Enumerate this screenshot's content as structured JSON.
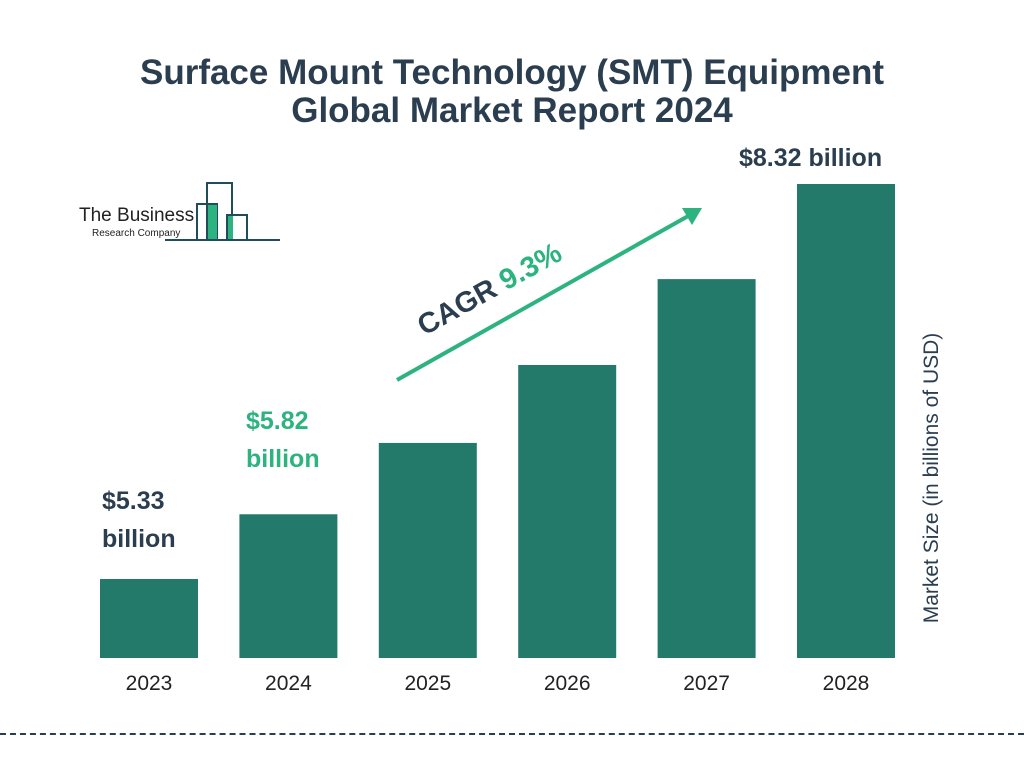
{
  "chart_data": {
    "type": "bar",
    "title": "Surface Mount Technology (SMT) Equipment Global Market Report 2024",
    "title_lines": [
      "Surface Mount Technology (SMT) Equipment",
      "Global Market Report 2024"
    ],
    "categories": [
      "2023",
      "2024",
      "2025",
      "2026",
      "2027",
      "2028"
    ],
    "values": [
      5.33,
      5.82,
      6.36,
      6.95,
      7.6,
      8.32
    ],
    "data_labels": {
      "2023": [
        "$5.33",
        "billion"
      ],
      "2024": [
        "$5.82",
        "billion"
      ],
      "2028": "$8.32 billion"
    },
    "ylabel": "Market Size (in billions of USD)",
    "xlabel": "",
    "annotation": {
      "label": "CAGR",
      "value": "9.3%"
    },
    "grid": false,
    "colors": {
      "bar": "#237a6b",
      "accent": "#2db37f",
      "text": "#2b3e50"
    }
  },
  "logo": {
    "line1": "The Business",
    "line2": "Research Company"
  }
}
